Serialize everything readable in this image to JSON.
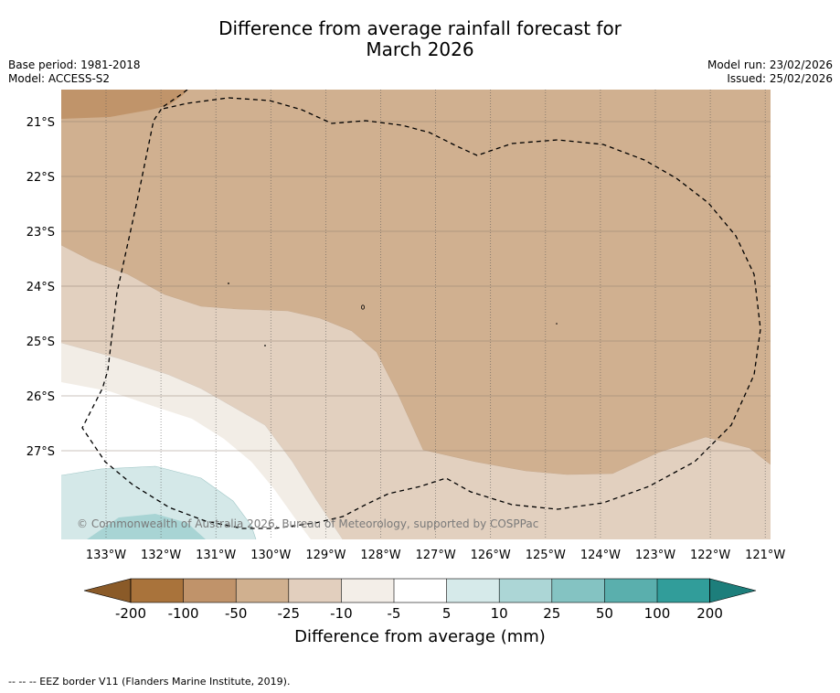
{
  "title": {
    "line1": "Difference from average rainfall forecast for",
    "line2": "March 2026"
  },
  "meta": {
    "base_period": "Base period: 1981-2018",
    "model": "Model: ACCESS-S2",
    "model_run": "Model run: 23/02/2026",
    "issued": "Issued: 25/02/2026"
  },
  "map": {
    "lat_labels": [
      "21°S",
      "22°S",
      "23°S",
      "24°S",
      "25°S",
      "26°S",
      "27°S"
    ],
    "lon_labels": [
      "133°W",
      "132°W",
      "131°W",
      "130°W",
      "129°W",
      "128°W",
      "127°W",
      "126°W",
      "125°W",
      "124°W",
      "123°W",
      "122°W",
      "121°W"
    ],
    "copyright": "© Commonwealth of Australia 2026, Bureau of Meteorology, supported by COSPPac",
    "zones": [
      {
        "name": "-100 to -50",
        "color": "#c0946a"
      },
      {
        "name": "-50 to -25",
        "color": "#d0b090"
      },
      {
        "name": "-25 to -10",
        "color": "#e2d0bf"
      },
      {
        "name": "-10 to -5",
        "color": "#f2ede6"
      },
      {
        "name": "-5 to 5",
        "color": "#ffffff"
      },
      {
        "name": "5 to 10",
        "color": "#d4e8e8"
      },
      {
        "name": "10 to 25",
        "color": "#a8d4d4"
      }
    ]
  },
  "colorbar": {
    "labels": [
      "-200",
      "-100",
      "-50",
      "-25",
      "-10",
      "-5",
      "5",
      "10",
      "25",
      "50",
      "100",
      "200"
    ],
    "colors": [
      "#a9733b",
      "#c0936a",
      "#d0b08f",
      "#e2cfbe",
      "#f3eee8",
      "#ffffff",
      "#d6eaea",
      "#acd6d6",
      "#84c3c2",
      "#5aafad",
      "#319d9a"
    ],
    "low_arrow_color": "#8a5a28",
    "high_arrow_color": "#1d7e7b",
    "title": "Difference from average (mm)"
  },
  "footer": "--  --  -- EEZ border V11 (Flanders Marine Institute, 2019)."
}
